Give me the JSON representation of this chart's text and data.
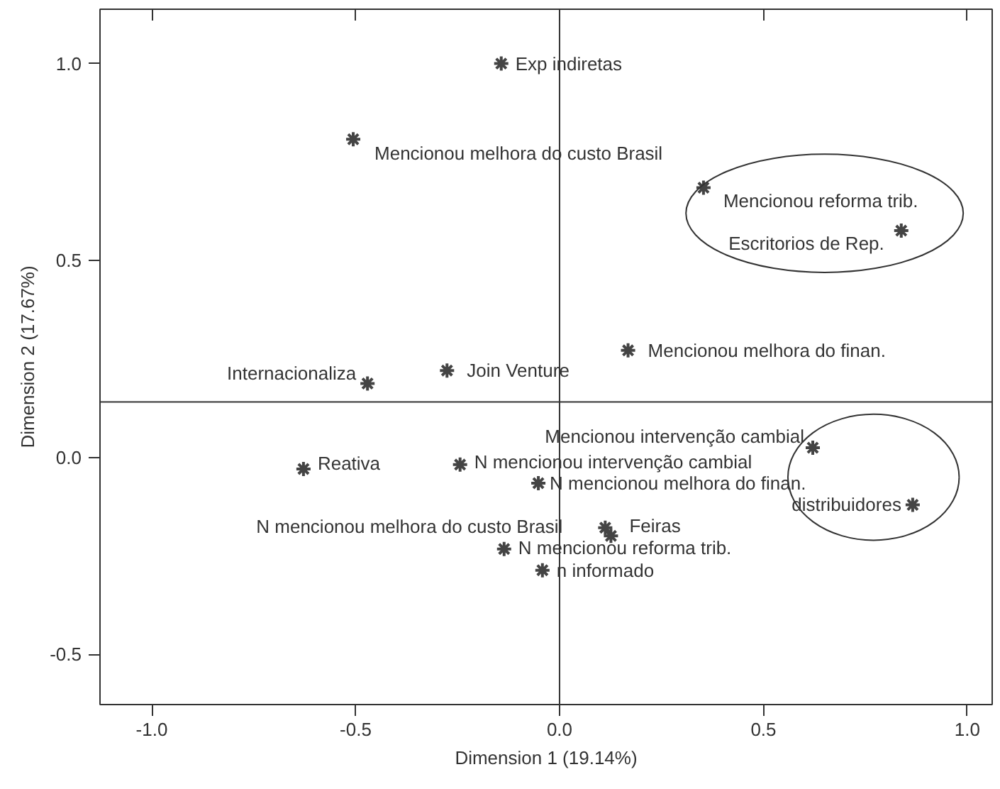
{
  "chart_data": {
    "type": "scatter",
    "xlabel": "Dimension 1 (19.14%)",
    "ylabel": "Dimension 2 (17.67%)",
    "x": [
      -0.143,
      -0.506,
      0.353,
      0.838,
      0.168,
      -0.471,
      -0.276,
      0.621,
      -0.628,
      -0.244,
      -0.052,
      0.866,
      0.112,
      0.126,
      -0.136,
      -0.042
    ],
    "values": [
      1.0,
      0.808,
      0.685,
      0.576,
      0.272,
      0.188,
      0.221,
      0.025,
      -0.029,
      -0.018,
      -0.065,
      -0.12,
      -0.178,
      -0.199,
      -0.232,
      -0.286
    ],
    "color": "#444444",
    "marker": "cross",
    "grid": false,
    "xlim": [
      -1.127,
      1.061
    ],
    "ylim": [
      -0.627,
      1.138
    ],
    "xticks": [
      {
        "value": -1.0,
        "label": "-1.0"
      },
      {
        "value": -0.5,
        "label": "-0.5"
      },
      {
        "value": 0.0,
        "label": "0.0"
      },
      {
        "value": 0.5,
        "label": "0.5"
      },
      {
        "value": 1.0,
        "label": "1.0"
      }
    ],
    "yticks": [
      {
        "value": -0.5,
        "label": "-0.5"
      },
      {
        "value": 0.0,
        "label": "0.0"
      },
      {
        "value": 0.5,
        "label": "0.5"
      },
      {
        "value": 1.0,
        "label": "1.0"
      }
    ],
    "ref_lines": [
      {
        "axis": "y",
        "value": 0.141
      },
      {
        "axis": "x",
        "value": 0
      }
    ],
    "annotations": [
      {
        "text": "Exp indiretas",
        "x": -0.143,
        "y": 1.0
      },
      {
        "text": "Mencionou melhora do custo Brasil",
        "x": -0.506,
        "y": 0.808
      },
      {
        "text": "Mencionou reforma trib.",
        "x": 0.353,
        "y": 0.685
      },
      {
        "text": "Escritorios de Rep.",
        "x": 0.838,
        "y": 0.576
      },
      {
        "text": "Mencionou melhora do finan.",
        "x": 0.168,
        "y": 0.272
      },
      {
        "text": "Internacionaliza",
        "x": -0.471,
        "y": 0.188
      },
      {
        "text": "Join Venture",
        "x": -0.276,
        "y": 0.221
      },
      {
        "text": "Mencionou intervenção cambial",
        "x": 0.621,
        "y": 0.025
      },
      {
        "text": "Reativa",
        "x": -0.628,
        "y": -0.029
      },
      {
        "text": "N mencionou intervenção cambial",
        "x": -0.244,
        "y": -0.018
      },
      {
        "text": "N mencionou melhora do finan.",
        "x": -0.052,
        "y": -0.065
      },
      {
        "text": "distribuidores",
        "x": 0.866,
        "y": -0.12
      },
      {
        "text": "N mencionou melhora do custo Brasil",
        "x": 0.112,
        "y": -0.178
      },
      {
        "text": "Feiras",
        "x": 0.126,
        "y": -0.199
      },
      {
        "text": "N mencionou reforma trib.",
        "x": -0.136,
        "y": -0.232
      },
      {
        "text": "n informado",
        "x": -0.042,
        "y": -0.286
      }
    ]
  }
}
